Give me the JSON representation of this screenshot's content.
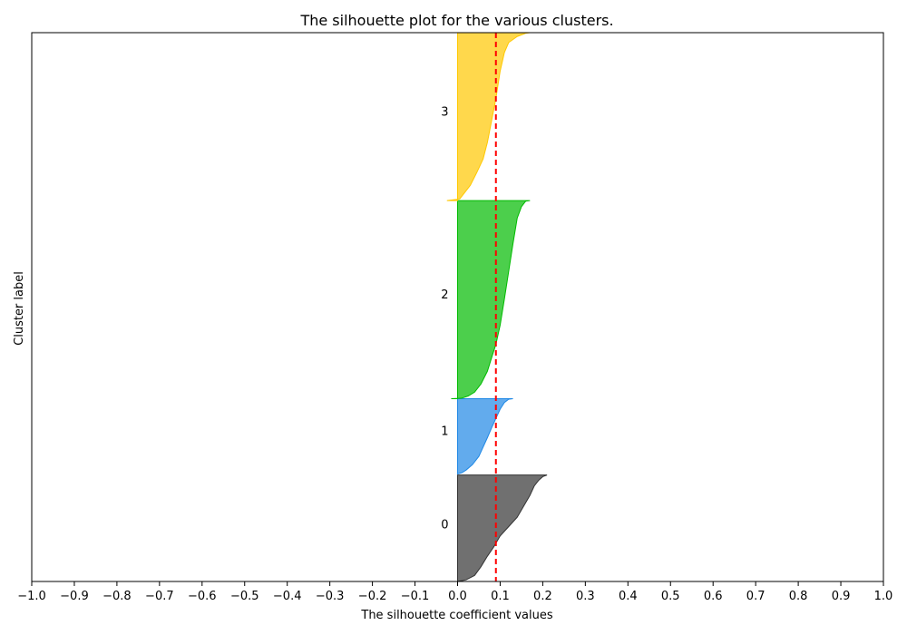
{
  "chart_data": {
    "type": "area",
    "title": "The silhouette plot for the various clusters.",
    "xlabel": "The silhouette coefficient values",
    "ylabel": "Cluster label",
    "xlim": [
      -1.0,
      1.0
    ],
    "x_ticks": [
      "−1.0",
      "−0.9",
      "−0.8",
      "−0.7",
      "−0.6",
      "−0.5",
      "−0.4",
      "−0.3",
      "−0.2",
      "−0.1",
      "0.0",
      "0.1",
      "0.2",
      "0.3",
      "0.4",
      "0.5",
      "0.6",
      "0.7",
      "0.8",
      "0.9",
      "1.0"
    ],
    "x_tick_values": [
      -1.0,
      -0.9,
      -0.8,
      -0.7,
      -0.6,
      -0.5,
      -0.4,
      -0.3,
      -0.2,
      -0.1,
      0.0,
      0.1,
      0.2,
      0.3,
      0.4,
      0.5,
      0.6,
      0.7,
      0.8,
      0.9,
      1.0
    ],
    "y_range": [
      0,
      1000
    ],
    "average_silhouette": 0.09,
    "average_line_color": "#ff0000",
    "clusters": [
      {
        "label": "0",
        "color": "#333333",
        "y_lower": 0,
        "y_upper": 194,
        "label_y": 105,
        "profile": [
          [
            0.21,
            194
          ],
          [
            0.2,
            191
          ],
          [
            0.19,
            184
          ],
          [
            0.18,
            174
          ],
          [
            0.17,
            157
          ],
          [
            0.155,
            137
          ],
          [
            0.14,
            117
          ],
          [
            0.12,
            100
          ],
          [
            0.1,
            83
          ],
          [
            0.085,
            63
          ],
          [
            0.07,
            46
          ],
          [
            0.055,
            27
          ],
          [
            0.04,
            11
          ],
          [
            0.02,
            3
          ],
          [
            0.0,
            0
          ]
        ]
      },
      {
        "label": "1",
        "color": "#1f88e5",
        "y_lower": 196,
        "y_upper": 333,
        "label_y": 275,
        "profile": [
          [
            0.13,
            333
          ],
          [
            0.12,
            332
          ],
          [
            0.11,
            326
          ],
          [
            0.1,
            314
          ],
          [
            0.09,
            297
          ],
          [
            0.08,
            280
          ],
          [
            0.07,
            262
          ],
          [
            0.06,
            245
          ],
          [
            0.05,
            228
          ],
          [
            0.035,
            213
          ],
          [
            0.02,
            203
          ],
          [
            0.01,
            198
          ],
          [
            0.0,
            196
          ]
        ]
      },
      {
        "label": "2",
        "color": "#00bb00",
        "y_lower": 333,
        "y_upper": 694,
        "label_y": 524,
        "profile": [
          [
            0.17,
            694
          ],
          [
            0.16,
            693
          ],
          [
            0.15,
            683
          ],
          [
            0.14,
            662
          ],
          [
            0.13,
            615
          ],
          [
            0.12,
            565
          ],
          [
            0.11,
            515
          ],
          [
            0.1,
            467
          ],
          [
            0.09,
            432
          ],
          [
            0.08,
            408
          ],
          [
            0.07,
            383
          ],
          [
            0.055,
            360
          ],
          [
            0.04,
            345
          ],
          [
            0.025,
            338
          ],
          [
            0.01,
            334
          ],
          [
            -0.015,
            333
          ]
        ]
      },
      {
        "label": "3",
        "color": "#ffc800",
        "y_lower": 694,
        "y_upper": 1000,
        "label_y": 857,
        "profile": [
          [
            0.17,
            1000
          ],
          [
            0.16,
            999
          ],
          [
            0.14,
            993
          ],
          [
            0.12,
            982
          ],
          [
            0.11,
            964
          ],
          [
            0.1,
            930
          ],
          [
            0.09,
            880
          ],
          [
            0.08,
            840
          ],
          [
            0.07,
            800
          ],
          [
            0.06,
            770
          ],
          [
            0.045,
            745
          ],
          [
            0.03,
            722
          ],
          [
            0.015,
            707
          ],
          [
            0.005,
            697
          ],
          [
            -0.025,
            694
          ]
        ]
      }
    ]
  }
}
